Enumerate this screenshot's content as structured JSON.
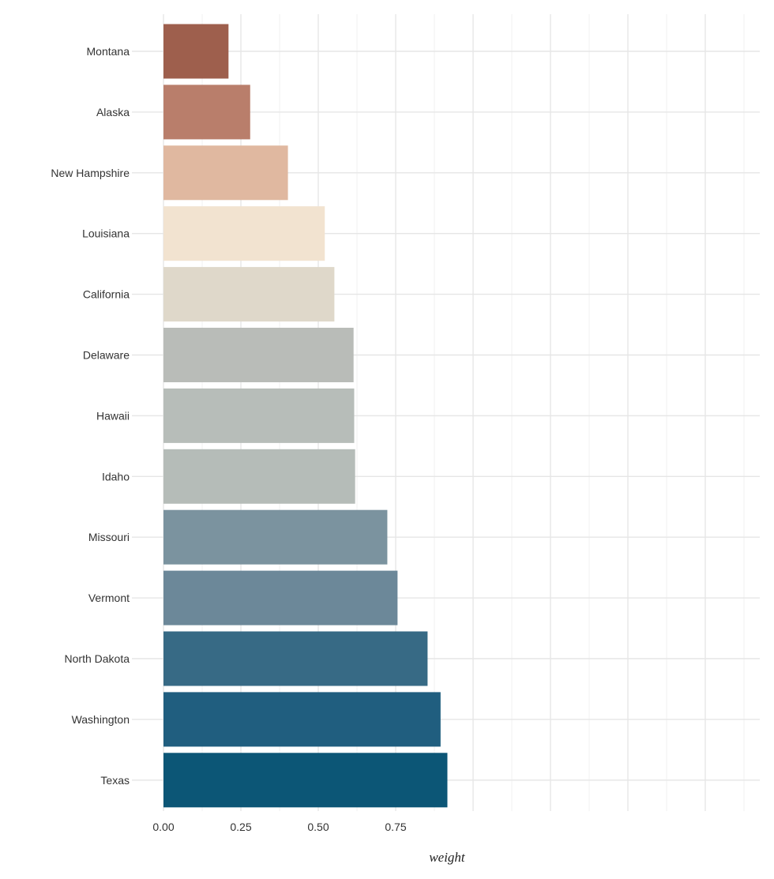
{
  "chart_data": {
    "type": "bar",
    "orientation": "horizontal",
    "categories": [
      "Montana",
      "Alaska",
      "New Hampshire",
      "Louisiana",
      "California",
      "Delaware",
      "Hawaii",
      "Idaho",
      "Missouri",
      "Vermont",
      "North Dakota",
      "Washington",
      "Texas"
    ],
    "values": [
      0.21,
      0.28,
      0.402,
      0.521,
      0.552,
      0.614,
      0.616,
      0.619,
      0.723,
      0.756,
      0.853,
      0.895,
      0.917
    ],
    "colors": [
      "#9e5f4d",
      "#b97e6b",
      "#e0b8a0",
      "#f2e3d0",
      "#dfd8ca",
      "#b9bcb8",
      "#b7bdb9",
      "#b5bcb8",
      "#7b939f",
      "#6c8899",
      "#376a85",
      "#205e7f",
      "#0c5676"
    ],
    "xlabel": "weight",
    "ylabel": "",
    "xlim": [
      0,
      0.95
    ],
    "xticks": [
      0,
      0.25,
      0.5,
      0.75
    ],
    "xtick_labels": [
      "0.00",
      "0.25",
      "0.50",
      "0.75"
    ],
    "grid": true,
    "legend": "none"
  }
}
